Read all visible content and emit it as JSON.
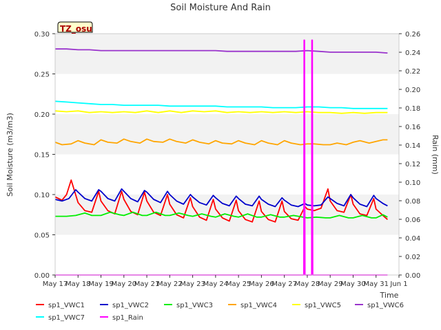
{
  "chart_data": {
    "type": "line",
    "title": "Soil Moisture And Rain",
    "site_label": "TZ_osu",
    "xlabel": "Time",
    "ylabel_left": "Soil Moisture (m3/m3)",
    "ylabel_right": "Rain (mm)",
    "x_ticks": [
      "May 17",
      "May 18",
      "May 19",
      "May 20",
      "May 21",
      "May 22",
      "May 23",
      "May 24",
      "May 25",
      "May 26",
      "May 27",
      "May 28",
      "May 29",
      "May 30",
      "May 31",
      "Jun 1"
    ],
    "x_range_days": [
      17,
      32
    ],
    "ylim_left": [
      0.0,
      0.3
    ],
    "ylim_right": [
      0.0,
      0.26
    ],
    "y_ticks_left": [
      "0.00",
      "0.05",
      "0.10",
      "0.15",
      "0.20",
      "0.25",
      "0.30"
    ],
    "y_ticks_right": [
      "0.00",
      "0.02",
      "0.04",
      "0.06",
      "0.08",
      "0.10",
      "0.12",
      "0.14",
      "0.16",
      "0.18",
      "0.20",
      "0.22",
      "0.24",
      "0.26"
    ],
    "grid": "alternating horizontal bands",
    "legend_position": "bottom",
    "series": [
      {
        "name": "sp1_VWC1",
        "color": "#ff0000",
        "axis": "left",
        "x": [
          17.0,
          17.3,
          17.5,
          17.7,
          18.0,
          18.3,
          18.6,
          18.9,
          19.0,
          19.3,
          19.6,
          19.9,
          20.0,
          20.3,
          20.6,
          20.9,
          21.0,
          21.3,
          21.6,
          21.9,
          22.0,
          22.3,
          22.6,
          22.9,
          23.0,
          23.3,
          23.6,
          23.9,
          24.0,
          24.3,
          24.6,
          24.9,
          25.0,
          25.3,
          25.6,
          25.9,
          26.0,
          26.3,
          26.6,
          26.9,
          27.0,
          27.3,
          27.6,
          27.9,
          28.0,
          28.3,
          28.6,
          28.9,
          29.0,
          29.3,
          29.6,
          29.9,
          30.0,
          30.3,
          30.6,
          30.9,
          31.0,
          31.3,
          31.5
        ],
        "values": [
          0.097,
          0.093,
          0.1,
          0.118,
          0.09,
          0.08,
          0.078,
          0.104,
          0.092,
          0.08,
          0.076,
          0.104,
          0.094,
          0.079,
          0.075,
          0.103,
          0.092,
          0.078,
          0.074,
          0.1,
          0.088,
          0.075,
          0.071,
          0.096,
          0.085,
          0.072,
          0.068,
          0.094,
          0.082,
          0.071,
          0.067,
          0.093,
          0.08,
          0.069,
          0.066,
          0.092,
          0.079,
          0.069,
          0.066,
          0.092,
          0.079,
          0.07,
          0.068,
          0.085,
          0.082,
          0.08,
          0.083,
          0.107,
          0.092,
          0.08,
          0.078,
          0.1,
          0.088,
          0.076,
          0.074,
          0.095,
          0.082,
          0.074,
          0.069
        ]
      },
      {
        "name": "sp1_VWC2",
        "color": "#0000cc",
        "axis": "left",
        "x": [
          17.0,
          17.3,
          17.6,
          17.9,
          18.0,
          18.3,
          18.6,
          18.9,
          19.0,
          19.3,
          19.6,
          19.9,
          20.0,
          20.3,
          20.6,
          20.9,
          21.0,
          21.3,
          21.6,
          21.9,
          22.0,
          22.3,
          22.6,
          22.9,
          23.0,
          23.3,
          23.6,
          23.9,
          24.0,
          24.3,
          24.6,
          24.9,
          25.0,
          25.3,
          25.6,
          25.9,
          26.0,
          26.3,
          26.6,
          26.9,
          27.0,
          27.3,
          27.6,
          27.9,
          28.0,
          28.3,
          28.6,
          28.9,
          29.0,
          29.3,
          29.6,
          29.9,
          30.0,
          30.3,
          30.6,
          30.9,
          31.0,
          31.3,
          31.5
        ],
        "values": [
          0.094,
          0.092,
          0.095,
          0.106,
          0.103,
          0.095,
          0.092,
          0.106,
          0.104,
          0.095,
          0.092,
          0.107,
          0.104,
          0.095,
          0.091,
          0.105,
          0.103,
          0.094,
          0.09,
          0.104,
          0.1,
          0.092,
          0.088,
          0.1,
          0.097,
          0.09,
          0.087,
          0.099,
          0.096,
          0.089,
          0.086,
          0.098,
          0.095,
          0.088,
          0.086,
          0.098,
          0.094,
          0.088,
          0.085,
          0.096,
          0.093,
          0.087,
          0.085,
          0.089,
          0.087,
          0.086,
          0.087,
          0.097,
          0.095,
          0.089,
          0.086,
          0.1,
          0.096,
          0.088,
          0.085,
          0.099,
          0.095,
          0.089,
          0.086
        ]
      },
      {
        "name": "sp1_VWC3",
        "color": "#00ee00",
        "axis": "left",
        "x": [
          17.0,
          17.5,
          17.9,
          18.3,
          18.6,
          19.0,
          19.4,
          19.8,
          20.0,
          20.4,
          20.8,
          21.0,
          21.4,
          21.8,
          22.0,
          22.4,
          22.8,
          23.0,
          23.4,
          23.8,
          24.0,
          24.4,
          24.8,
          25.0,
          25.4,
          25.8,
          26.0,
          26.4,
          26.8,
          27.0,
          27.4,
          27.8,
          28.0,
          28.4,
          28.8,
          29.0,
          29.4,
          29.8,
          30.0,
          30.4,
          30.8,
          31.0,
          31.3,
          31.5
        ],
        "values": [
          0.073,
          0.073,
          0.074,
          0.077,
          0.074,
          0.074,
          0.078,
          0.075,
          0.074,
          0.078,
          0.074,
          0.074,
          0.078,
          0.074,
          0.074,
          0.077,
          0.074,
          0.073,
          0.076,
          0.073,
          0.072,
          0.076,
          0.073,
          0.072,
          0.076,
          0.072,
          0.072,
          0.075,
          0.072,
          0.072,
          0.074,
          0.072,
          0.071,
          0.072,
          0.071,
          0.071,
          0.074,
          0.071,
          0.071,
          0.074,
          0.071,
          0.071,
          0.075,
          0.072
        ]
      },
      {
        "name": "sp1_VWC4",
        "color": "#ffa500",
        "axis": "left",
        "x": [
          17.0,
          17.3,
          17.7,
          18.0,
          18.3,
          18.7,
          19.0,
          19.3,
          19.7,
          20.0,
          20.3,
          20.7,
          21.0,
          21.3,
          21.7,
          22.0,
          22.3,
          22.7,
          23.0,
          23.3,
          23.7,
          24.0,
          24.3,
          24.7,
          25.0,
          25.3,
          25.7,
          26.0,
          26.3,
          26.7,
          27.0,
          27.3,
          27.7,
          28.0,
          28.3,
          28.7,
          29.0,
          29.3,
          29.7,
          30.0,
          30.3,
          30.7,
          31.0,
          31.3,
          31.5
        ],
        "values": [
          0.165,
          0.162,
          0.163,
          0.167,
          0.164,
          0.162,
          0.168,
          0.165,
          0.164,
          0.169,
          0.166,
          0.164,
          0.169,
          0.166,
          0.165,
          0.169,
          0.166,
          0.164,
          0.168,
          0.165,
          0.163,
          0.167,
          0.164,
          0.163,
          0.167,
          0.164,
          0.162,
          0.167,
          0.164,
          0.162,
          0.167,
          0.164,
          0.162,
          0.163,
          0.163,
          0.162,
          0.162,
          0.164,
          0.162,
          0.165,
          0.167,
          0.164,
          0.166,
          0.168,
          0.168
        ]
      },
      {
        "name": "sp1_VWC5",
        "color": "#ffff00",
        "axis": "left",
        "x": [
          17.0,
          17.5,
          18.0,
          18.5,
          19.0,
          19.5,
          20.0,
          20.5,
          21.0,
          21.5,
          22.0,
          22.5,
          23.0,
          23.5,
          24.0,
          24.5,
          25.0,
          25.5,
          26.0,
          26.5,
          27.0,
          27.5,
          28.0,
          28.5,
          29.0,
          29.5,
          30.0,
          30.5,
          31.0,
          31.5
        ],
        "values": [
          0.204,
          0.203,
          0.204,
          0.202,
          0.203,
          0.202,
          0.203,
          0.202,
          0.204,
          0.202,
          0.204,
          0.202,
          0.204,
          0.203,
          0.204,
          0.202,
          0.203,
          0.202,
          0.203,
          0.202,
          0.203,
          0.202,
          0.203,
          0.202,
          0.202,
          0.201,
          0.202,
          0.201,
          0.202,
          0.202
        ]
      },
      {
        "name": "sp1_VWC6",
        "color": "#9932cc",
        "axis": "left",
        "x": [
          17.0,
          17.5,
          18.0,
          18.5,
          19.0,
          19.5,
          20.0,
          20.5,
          21.0,
          21.5,
          22.0,
          22.5,
          23.0,
          23.5,
          24.0,
          24.5,
          25.0,
          25.5,
          26.0,
          26.5,
          27.0,
          27.5,
          28.0,
          28.5,
          29.0,
          29.5,
          30.0,
          30.5,
          31.0,
          31.5
        ],
        "values": [
          0.281,
          0.281,
          0.28,
          0.28,
          0.279,
          0.279,
          0.279,
          0.279,
          0.279,
          0.279,
          0.279,
          0.279,
          0.279,
          0.279,
          0.279,
          0.278,
          0.278,
          0.278,
          0.278,
          0.278,
          0.278,
          0.278,
          0.279,
          0.278,
          0.277,
          0.277,
          0.277,
          0.277,
          0.277,
          0.276
        ]
      },
      {
        "name": "sp1_VWC7",
        "color": "#00ffff",
        "axis": "left",
        "x": [
          17.0,
          17.5,
          18.0,
          18.5,
          19.0,
          19.5,
          20.0,
          20.5,
          21.0,
          21.5,
          22.0,
          22.5,
          23.0,
          23.5,
          24.0,
          24.5,
          25.0,
          25.5,
          26.0,
          26.5,
          27.0,
          27.5,
          28.0,
          28.5,
          29.0,
          29.5,
          30.0,
          30.5,
          31.0,
          31.5
        ],
        "values": [
          0.216,
          0.215,
          0.214,
          0.213,
          0.212,
          0.212,
          0.211,
          0.211,
          0.211,
          0.211,
          0.21,
          0.21,
          0.21,
          0.21,
          0.21,
          0.209,
          0.209,
          0.209,
          0.209,
          0.208,
          0.208,
          0.208,
          0.209,
          0.209,
          0.208,
          0.208,
          0.207,
          0.207,
          0.207,
          0.207
        ]
      },
      {
        "name": "sp1_Rain",
        "color": "#ff00ff",
        "axis": "right",
        "x": [
          17.0,
          27.85,
          27.86,
          27.88,
          27.9,
          28.19,
          28.2,
          28.22,
          28.24,
          31.5
        ],
        "values": [
          0.0,
          0.0,
          0.253,
          0.253,
          0.0,
          0.0,
          0.253,
          0.253,
          0.0,
          0.0
        ]
      }
    ]
  }
}
